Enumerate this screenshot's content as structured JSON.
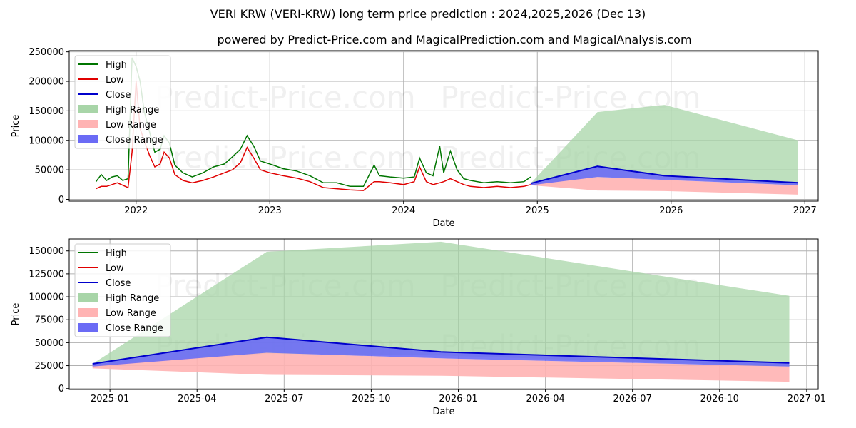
{
  "title": "VERI KRW (VERI-KRW) long term price prediction : 2024,2025,2026 (Dec 13)",
  "subtitle": "powered by Predict-Price.com and MagicalPrediction.com and MagicalAnalysis.com",
  "watermark": "Predict-Price.com",
  "colors": {
    "high": "#007500",
    "low": "#e00000",
    "close": "#0000cc",
    "high_range": "#a8d5a8",
    "low_range": "#ffb3b3",
    "close_range": "#6b6bf5"
  },
  "legend": [
    "High",
    "Low",
    "Close",
    "High Range",
    "Low Range",
    "Close Range"
  ],
  "chart_data": [
    {
      "type": "line",
      "panel": "top",
      "xlabel": "Date",
      "ylabel": "Price",
      "xlim": [
        2021.5,
        2027.1
      ],
      "ylim": [
        -3000,
        252000
      ],
      "xticks": [
        {
          "v": 2022,
          "label": "2022"
        },
        {
          "v": 2023,
          "label": "2023"
        },
        {
          "v": 2024,
          "label": "2024"
        },
        {
          "v": 2025,
          "label": "2025"
        },
        {
          "v": 2026,
          "label": "2026"
        },
        {
          "v": 2027,
          "label": "2027"
        }
      ],
      "yticks": [
        {
          "v": 0,
          "label": "0"
        },
        {
          "v": 50000,
          "label": "50000"
        },
        {
          "v": 100000,
          "label": "100000"
        },
        {
          "v": 150000,
          "label": "150000"
        },
        {
          "v": 200000,
          "label": "200000"
        },
        {
          "v": 250000,
          "label": "250000"
        }
      ],
      "history": {
        "x": [
          2021.7,
          2021.74,
          2021.78,
          2021.82,
          2021.86,
          2021.9,
          2021.94,
          2021.97,
          2022.0,
          2022.03,
          2022.06,
          2022.1,
          2022.14,
          2022.18,
          2022.21,
          2022.25,
          2022.29,
          2022.35,
          2022.42,
          2022.5,
          2022.58,
          2022.66,
          2022.72,
          2022.78,
          2022.83,
          2022.88,
          2022.93,
          2023.0,
          2023.1,
          2023.2,
          2023.3,
          2023.4,
          2023.5,
          2023.6,
          2023.7,
          2023.78,
          2023.82,
          2023.9,
          2024.0,
          2024.08,
          2024.12,
          2024.17,
          2024.22,
          2024.27,
          2024.3,
          2024.35,
          2024.4,
          2024.45,
          2024.5,
          2024.6,
          2024.7,
          2024.8,
          2024.9,
          2024.95
        ],
        "high": [
          30000,
          42000,
          32000,
          38000,
          40000,
          32000,
          35000,
          240000,
          225000,
          200000,
          150000,
          115000,
          80000,
          85000,
          108000,
          95000,
          58000,
          45000,
          38000,
          45000,
          55000,
          60000,
          72000,
          85000,
          108000,
          90000,
          65000,
          60000,
          52000,
          48000,
          40000,
          28000,
          28000,
          22000,
          22000,
          58000,
          40000,
          38000,
          36000,
          38000,
          70000,
          45000,
          40000,
          90000,
          45000,
          82000,
          50000,
          35000,
          32000,
          28000,
          30000,
          28000,
          30000,
          38000
        ],
        "low": [
          18000,
          22000,
          22000,
          25000,
          28000,
          24000,
          20000,
          80000,
          200000,
          120000,
          100000,
          75000,
          55000,
          60000,
          80000,
          70000,
          42000,
          32000,
          28000,
          32000,
          38000,
          45000,
          50000,
          62000,
          88000,
          70000,
          50000,
          45000,
          40000,
          36000,
          30000,
          20000,
          18000,
          16000,
          15000,
          30000,
          30000,
          28000,
          25000,
          30000,
          55000,
          30000,
          25000,
          28000,
          30000,
          35000,
          30000,
          25000,
          22000,
          20000,
          22000,
          20000,
          22000,
          25000
        ]
      },
      "forecast": {
        "x": [
          2024.95,
          2025.45,
          2025.95,
          2026.95
        ],
        "close": [
          27000,
          56000,
          40000,
          28000
        ],
        "high_range": [
          [
            25000,
            27000
          ],
          [
            38000,
            148000
          ],
          [
            35000,
            160000
          ],
          [
            24000,
            100000
          ]
        ],
        "low_range": [
          [
            24000,
            27000
          ],
          [
            15000,
            38000
          ],
          [
            14000,
            33000
          ],
          [
            8000,
            24000
          ]
        ],
        "close_range": [
          [
            24000,
            27000
          ],
          [
            38000,
            56000
          ],
          [
            33000,
            40000
          ],
          [
            24000,
            28000
          ]
        ]
      }
    },
    {
      "type": "line",
      "panel": "bottom",
      "xlabel": "Date",
      "ylabel": "Price",
      "xlim": [
        2024.883,
        2027.033
      ],
      "ylim": [
        -1000,
        163000
      ],
      "xticks": [
        {
          "v": 2025.0,
          "label": "2025-01"
        },
        {
          "v": 2025.25,
          "label": "2025-04"
        },
        {
          "v": 2025.5,
          "label": "2025-07"
        },
        {
          "v": 2025.75,
          "label": "2025-10"
        },
        {
          "v": 2026.0,
          "label": "2026-01"
        },
        {
          "v": 2026.25,
          "label": "2026-04"
        },
        {
          "v": 2026.5,
          "label": "2026-07"
        },
        {
          "v": 2026.75,
          "label": "2026-10"
        },
        {
          "v": 2027.0,
          "label": "2027-01"
        }
      ],
      "yticks": [
        {
          "v": 0,
          "label": "0"
        },
        {
          "v": 25000,
          "label": "25000"
        },
        {
          "v": 50000,
          "label": "50000"
        },
        {
          "v": 75000,
          "label": "75000"
        },
        {
          "v": 100000,
          "label": "100000"
        },
        {
          "v": 125000,
          "label": "125000"
        },
        {
          "v": 150000,
          "label": "150000"
        }
      ],
      "forecast": {
        "x": [
          2024.95,
          2025.45,
          2025.95,
          2026.95
        ],
        "close": [
          27000,
          56000,
          40000,
          28000
        ],
        "high_range": [
          [
            25000,
            27000
          ],
          [
            38000,
            149000
          ],
          [
            36000,
            160000
          ],
          [
            24000,
            101000
          ]
        ],
        "low_range": [
          [
            22000,
            26000
          ],
          [
            15000,
            39000
          ],
          [
            14000,
            33000
          ],
          [
            7500,
            24000
          ]
        ],
        "close_range": [
          [
            24000,
            27000
          ],
          [
            39000,
            56000
          ],
          [
            33000,
            40000
          ],
          [
            24000,
            28000
          ]
        ]
      }
    }
  ]
}
